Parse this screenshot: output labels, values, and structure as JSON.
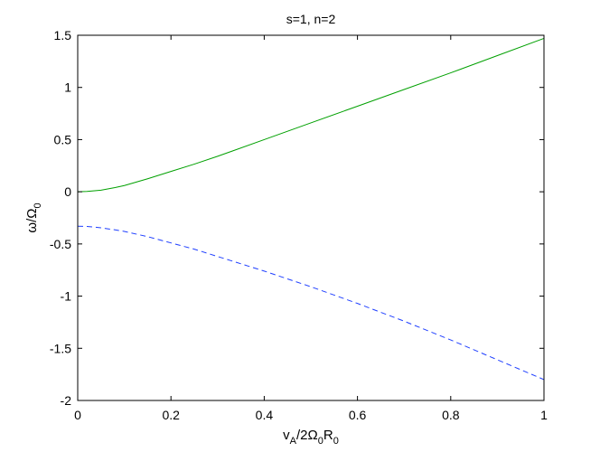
{
  "chart_data": {
    "type": "line",
    "title": "s=1, n=2",
    "xlabel": {
      "main": "v",
      "segments": [
        {
          "text": "v",
          "sub": "A"
        },
        {
          "text": "/2Ω",
          "sub": "0"
        },
        {
          "text": "R",
          "sub": "0"
        }
      ]
    },
    "ylabel": {
      "segments": [
        {
          "text": "ω/Ω",
          "sub": "0"
        }
      ]
    },
    "xlim": [
      0,
      1
    ],
    "ylim": [
      -2,
      1.5
    ],
    "xticks": [
      0,
      0.2,
      0.4,
      0.6,
      0.8,
      1
    ],
    "xtick_labels": [
      "0",
      "0.2",
      "0.4",
      "0.6",
      "0.8",
      "1"
    ],
    "yticks": [
      1.5,
      1,
      0.5,
      0,
      -0.5,
      -1,
      -1.5,
      -2
    ],
    "ytick_labels": [
      "1.5",
      "1",
      "0.5",
      "0",
      "-0.5",
      "-1",
      "-1.5",
      "-2"
    ],
    "grid": false,
    "series": [
      {
        "style": "solid",
        "color": "#00a000",
        "x": [
          0,
          0.02,
          0.05,
          0.08,
          0.1,
          0.15,
          0.2,
          0.25,
          0.3,
          0.4,
          0.5,
          0.6,
          0.7,
          0.8,
          0.9,
          1.0
        ],
        "y": [
          0,
          0.003,
          0.015,
          0.04,
          0.06,
          0.125,
          0.195,
          0.265,
          0.34,
          0.5,
          0.66,
          0.82,
          0.98,
          1.14,
          1.305,
          1.47
        ]
      },
      {
        "style": "dashed",
        "color": "#1f3fff",
        "x": [
          0,
          0.02,
          0.05,
          0.08,
          0.1,
          0.15,
          0.2,
          0.25,
          0.3,
          0.4,
          0.5,
          0.6,
          0.7,
          0.8,
          0.9,
          1.0
        ],
        "y": [
          -0.33,
          -0.332,
          -0.345,
          -0.365,
          -0.38,
          -0.43,
          -0.49,
          -0.55,
          -0.62,
          -0.76,
          -0.91,
          -1.07,
          -1.24,
          -1.42,
          -1.61,
          -1.8
        ]
      }
    ]
  }
}
